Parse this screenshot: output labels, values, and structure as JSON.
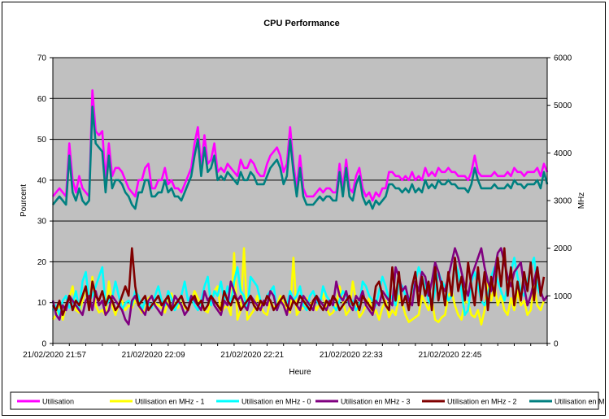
{
  "chart_data": {
    "type": "line",
    "title": "CPU Performance",
    "xlabel": "Heure",
    "ylabel": "Pourcent",
    "y2label": "MHz",
    "ylim": [
      0,
      70
    ],
    "y2lim": [
      0,
      6000
    ],
    "y_ticks": [
      0,
      10,
      20,
      30,
      40,
      50,
      60,
      70
    ],
    "y2_ticks": [
      0,
      1000,
      2000,
      3000,
      4000,
      5000,
      6000
    ],
    "x_tick_labels": [
      "21/02/2020 21:57",
      "21/02/2020 22:09",
      "21/02/2020 22:21",
      "21/02/2020 22:33",
      "21/02/2020 22:45"
    ],
    "x_ticks_index": [
      0,
      30,
      60,
      90,
      120
    ],
    "n_points": 151,
    "grid": true,
    "legend_position": "bottom",
    "plot_background": "#C0C0C0",
    "series": [
      {
        "name": "Utilisation",
        "axis": "left",
        "color": "#FF00FF",
        "values": [
          36,
          37,
          38,
          37,
          36,
          49,
          40,
          37,
          41,
          38,
          37,
          36,
          62,
          52,
          51,
          52,
          40,
          49,
          41,
          43,
          43,
          42,
          40,
          38,
          37,
          36,
          40,
          40,
          43,
          44,
          38,
          38,
          40,
          40,
          43,
          39,
          40,
          38,
          38,
          37,
          39,
          41,
          43,
          49,
          53,
          43,
          51,
          44,
          45,
          49,
          42,
          43,
          42,
          44,
          43,
          42,
          41,
          45,
          43,
          43,
          45,
          44,
          42,
          41,
          41,
          44,
          46,
          47,
          48,
          46,
          42,
          44,
          53,
          44,
          38,
          46,
          38,
          36,
          36,
          36,
          37,
          38,
          37,
          38,
          38,
          37,
          37,
          44,
          38,
          45,
          38,
          37,
          41,
          43,
          38,
          36,
          37,
          35,
          37,
          36,
          38,
          38,
          42,
          42,
          41,
          41,
          40,
          41,
          40,
          42,
          40,
          41,
          40,
          43,
          41,
          42,
          41,
          43,
          42,
          42,
          43,
          42,
          42,
          41,
          41,
          41,
          40,
          42,
          46,
          42,
          41,
          41,
          41,
          41,
          42,
          41,
          41,
          41,
          42,
          41,
          43,
          42,
          42,
          41,
          42,
          42,
          42,
          43,
          41,
          44,
          42
        ]
      },
      {
        "name": "Utilisation en MHz - 1",
        "axis": "right",
        "color": "#FFFF00",
        "values": [
          500,
          600,
          850,
          500,
          800,
          950,
          1200,
          700,
          650,
          900,
          1200,
          700,
          1400,
          800,
          650,
          700,
          600,
          1300,
          800,
          600,
          850,
          900,
          700,
          800,
          750,
          900,
          800,
          650,
          700,
          950,
          1000,
          850,
          800,
          750,
          650,
          900,
          1050,
          800,
          750,
          1000,
          750,
          700,
          900,
          1100,
          950,
          800,
          700,
          650,
          900,
          1100,
          1200,
          650,
          750,
          800,
          600,
          1900,
          500,
          700,
          2000,
          500,
          600,
          700,
          1000,
          800,
          650,
          600,
          900,
          750,
          800,
          1000,
          850,
          700,
          650,
          1800,
          600,
          700,
          750,
          950,
          800,
          900,
          700,
          850,
          1050,
          750,
          600,
          650,
          800,
          1200,
          900,
          600,
          700,
          1300,
          900,
          550,
          650,
          800,
          950,
          600,
          700,
          500,
          750,
          900,
          550,
          700,
          600,
          1000,
          850,
          600,
          450,
          500,
          550,
          600,
          1000,
          850,
          700,
          900,
          500,
          450,
          550,
          600,
          1000,
          1100,
          800,
          600,
          500,
          900,
          850,
          600,
          550,
          700,
          400,
          700,
          1300,
          900,
          1200,
          800,
          1000,
          700,
          600,
          950,
          700,
          1100,
          800,
          900,
          600,
          700,
          1200,
          800,
          700,
          900
        ]
      },
      {
        "name": "Utilisation en MHz - 0",
        "axis": "right",
        "color": "#00FFFF",
        "values": [
          700,
          800,
          600,
          900,
          1000,
          750,
          850,
          1100,
          700,
          1300,
          1500,
          900,
          1000,
          1200,
          1400,
          1600,
          800,
          900,
          950,
          1300,
          1000,
          700,
          850,
          900,
          800,
          1100,
          1000,
          700,
          900,
          850,
          750,
          1000,
          1200,
          900,
          800,
          1100,
          950,
          700,
          850,
          1000,
          1300,
          900,
          1000,
          800,
          700,
          900,
          1200,
          1400,
          800,
          1100,
          1000,
          1300,
          900,
          1200,
          800,
          1300,
          1600,
          1100,
          1000,
          700,
          1400,
          1300,
          1200,
          900,
          800,
          1000,
          1100,
          1200,
          700,
          900,
          1000,
          800,
          1100,
          900,
          1000,
          1200,
          800,
          700,
          1000,
          1100,
          900,
          800,
          1200,
          1000,
          900,
          800,
          700,
          900,
          1100,
          1000,
          800,
          900,
          700,
          800,
          1300,
          1200,
          1000,
          900,
          800,
          1100,
          1400,
          1200,
          900,
          1000,
          800,
          1300,
          1200,
          1000,
          900,
          1100,
          1300,
          1600,
          1400,
          1200,
          900,
          800,
          1100,
          1500,
          1300,
          1200,
          900,
          1000,
          1700,
          1500,
          1100,
          600,
          700,
          1300,
          1500,
          1200,
          900,
          800,
          1000,
          1400,
          1600,
          1300,
          1100,
          900,
          1200,
          1500,
          1800,
          1400,
          1100,
          1000,
          1300,
          1600,
          1800,
          1200,
          1000
        ]
      },
      {
        "name": "Utilisation en MHz - 3",
        "axis": "right",
        "color": "#800080",
        "values": [
          900,
          600,
          500,
          800,
          700,
          1000,
          900,
          800,
          700,
          600,
          900,
          1000,
          700,
          1100,
          800,
          900,
          600,
          700,
          1000,
          900,
          800,
          700,
          500,
          400,
          900,
          1000,
          800,
          700,
          600,
          900,
          1000,
          800,
          700,
          600,
          900,
          800,
          700,
          1000,
          900,
          800,
          600,
          700,
          1000,
          900,
          800,
          700,
          1100,
          900,
          1000,
          800,
          700,
          600,
          900,
          800,
          1300,
          1100,
          900,
          1000,
          800,
          700,
          1000,
          900,
          800,
          700,
          900,
          800,
          1100,
          1000,
          700,
          900,
          800,
          600,
          1000,
          900,
          800,
          700,
          1000,
          900,
          800,
          700,
          1000,
          900,
          800,
          700,
          900,
          800,
          1300,
          1000,
          900,
          1100,
          800,
          700,
          1000,
          900,
          1100,
          800,
          700,
          600,
          900,
          800,
          1100,
          1000,
          900,
          800,
          1600,
          1400,
          1100,
          1200,
          900,
          800,
          1300,
          1100,
          1500,
          1400,
          1000,
          1300,
          1700,
          1500,
          1200,
          1100,
          1400,
          1700,
          2000,
          1800,
          1500,
          1200,
          1000,
          1400,
          1600,
          1800,
          2000,
          1600,
          1300,
          1100,
          1500,
          1900,
          2000,
          1700,
          1400,
          1200,
          1500,
          1600,
          1700,
          1200,
          800,
          1000,
          1300,
          1600,
          1100,
          900,
          1000
        ]
      },
      {
        "name": "Utilisation en MHz - 2",
        "axis": "right",
        "color": "#800000",
        "values": [
          800,
          700,
          900,
          600,
          800,
          1000,
          700,
          900,
          800,
          1000,
          1200,
          700,
          1300,
          1000,
          900,
          1100,
          800,
          1000,
          900,
          700,
          800,
          1000,
          1200,
          1000,
          2000,
          1200,
          800,
          900,
          1000,
          700,
          800,
          900,
          1000,
          800,
          900,
          1000,
          700,
          800,
          900,
          1000,
          800,
          700,
          900,
          1000,
          800,
          900,
          700,
          800,
          1000,
          900,
          800,
          700,
          1100,
          900,
          800,
          1000,
          900,
          700,
          800,
          900,
          1000,
          800,
          700,
          900,
          800,
          1000,
          900,
          700,
          800,
          900,
          1000,
          800,
          700,
          900,
          800,
          1000,
          900,
          800,
          700,
          900,
          1000,
          800,
          700,
          900,
          800,
          1000,
          900,
          700,
          800,
          900,
          1000,
          800,
          900,
          700,
          1000,
          900,
          800,
          700,
          1200,
          1300,
          1000,
          800,
          700,
          1600,
          900,
          1500,
          800,
          1000,
          700,
          1200,
          1500,
          800,
          1400,
          1000,
          1300,
          700,
          1600,
          900,
          1300,
          800,
          1500,
          1000,
          1800,
          1100,
          1400,
          900,
          1700,
          1200,
          800,
          1600,
          900,
          1500,
          700,
          1400,
          1000,
          1800,
          1200,
          2000,
          1000,
          1600,
          800,
          1300,
          900,
          1500,
          1100,
          1700,
          900,
          1600,
          1000,
          1400
        ]
      },
      {
        "name": "Utilisation en MHz",
        "axis": "left",
        "color": "#008080",
        "values": [
          34,
          35,
          36,
          35,
          34,
          46,
          37,
          35,
          38,
          35,
          34,
          35,
          58,
          49,
          48,
          47,
          37,
          46,
          38,
          40,
          40,
          39,
          37,
          36,
          34,
          33,
          37,
          37,
          40,
          40,
          36,
          36,
          37,
          37,
          40,
          37,
          38,
          36,
          36,
          35,
          37,
          39,
          41,
          46,
          50,
          41,
          48,
          42,
          43,
          46,
          40,
          41,
          40,
          42,
          41,
          40,
          39,
          42,
          40,
          40,
          42,
          41,
          39,
          39,
          39,
          41,
          43,
          44,
          45,
          43,
          39,
          41,
          50,
          42,
          36,
          43,
          36,
          34,
          34,
          34,
          35,
          36,
          35,
          36,
          36,
          35,
          35,
          42,
          36,
          43,
          36,
          35,
          39,
          41,
          36,
          34,
          35,
          33,
          35,
          34,
          35,
          36,
          39,
          39,
          38,
          38,
          37,
          38,
          37,
          39,
          37,
          38,
          37,
          40,
          38,
          39,
          38,
          40,
          39,
          39,
          40,
          39,
          39,
          38,
          38,
          38,
          37,
          39,
          43,
          40,
          38,
          38,
          38,
          38,
          39,
          38,
          38,
          38,
          39,
          38,
          40,
          39,
          39,
          38,
          39,
          39,
          39,
          40,
          38,
          42,
          39
        ]
      }
    ]
  }
}
